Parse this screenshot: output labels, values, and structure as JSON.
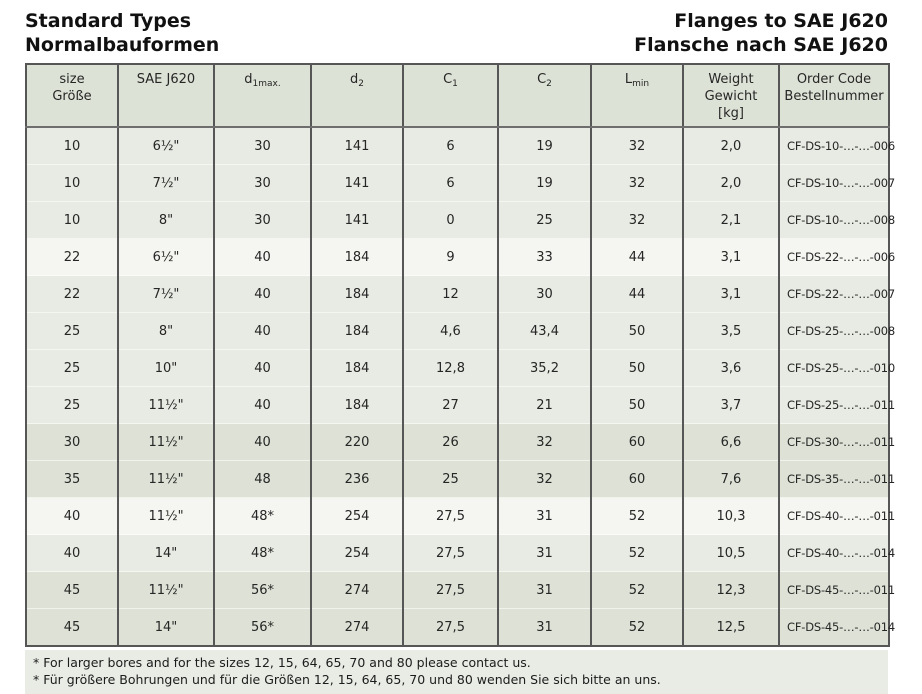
{
  "page_titles": {
    "left": [
      "Standard Types",
      "Normalbauformen"
    ],
    "right": [
      "Flanges to SAE J620",
      "Flansche nach SAE J620"
    ]
  },
  "colors": {
    "header_bg": "#dde2d6",
    "row_light": "#e8ebe3",
    "row_white": "#f5f6f1",
    "row_dark": "#dee2d6",
    "footnote_bg": "#e8ece5",
    "border": "#565656",
    "text": "#262626"
  },
  "table": {
    "headers": [
      {
        "lines": [
          "size",
          "Größe"
        ]
      },
      {
        "lines": [
          "SAE J620"
        ]
      },
      {
        "main": "d",
        "sub": "1max."
      },
      {
        "main": "d",
        "sub": "2"
      },
      {
        "main": "C",
        "sub": "1"
      },
      {
        "main": "C",
        "sub": "2"
      },
      {
        "main": "L",
        "sub": "min"
      },
      {
        "lines": [
          "Weight",
          "Gewicht",
          "[kg]"
        ]
      },
      {
        "lines": [
          "Order Code",
          "Bestellnummer"
        ]
      }
    ],
    "rows": [
      {
        "shade": "a",
        "cells": [
          "10",
          "6½\"",
          "30",
          "141",
          "6",
          "19",
          "32",
          "2,0",
          "CF-DS-10-…-…-006"
        ]
      },
      {
        "shade": "a",
        "cells": [
          "10",
          "7½\"",
          "30",
          "141",
          "6",
          "19",
          "32",
          "2,0",
          "CF-DS-10-…-…-007"
        ]
      },
      {
        "shade": "a",
        "cells": [
          "10",
          "8\"",
          "30",
          "141",
          "0",
          "25",
          "32",
          "2,1",
          "CF-DS-10-…-…-008"
        ]
      },
      {
        "shade": "b",
        "cells": [
          "22",
          "6½\"",
          "40",
          "184",
          "9",
          "33",
          "44",
          "3,1",
          "CF-DS-22-…-…-006"
        ]
      },
      {
        "shade": "a",
        "cells": [
          "22",
          "7½\"",
          "40",
          "184",
          "12",
          "30",
          "44",
          "3,1",
          "CF-DS-22-…-…-007"
        ]
      },
      {
        "shade": "a",
        "cells": [
          "25",
          "8\"",
          "40",
          "184",
          "4,6",
          "43,4",
          "50",
          "3,5",
          "CF-DS-25-…-…-008"
        ]
      },
      {
        "shade": "a",
        "cells": [
          "25",
          "10\"",
          "40",
          "184",
          "12,8",
          "35,2",
          "50",
          "3,6",
          "CF-DS-25-…-…-010"
        ]
      },
      {
        "shade": "a",
        "cells": [
          "25",
          "11½\"",
          "40",
          "184",
          "27",
          "21",
          "50",
          "3,7",
          "CF-DS-25-…-…-011"
        ]
      },
      {
        "shade": "c",
        "cells": [
          "30",
          "11½\"",
          "40",
          "220",
          "26",
          "32",
          "60",
          "6,6",
          "CF-DS-30-…-…-011"
        ]
      },
      {
        "shade": "c",
        "cells": [
          "35",
          "11½\"",
          "48",
          "236",
          "25",
          "32",
          "60",
          "7,6",
          "CF-DS-35-…-…-011"
        ]
      },
      {
        "shade": "b",
        "cells": [
          "40",
          "11½\"",
          "48*",
          "254",
          "27,5",
          "31",
          "52",
          "10,3",
          "CF-DS-40-…-…-011"
        ]
      },
      {
        "shade": "a",
        "cells": [
          "40",
          "14\"",
          "48*",
          "254",
          "27,5",
          "31",
          "52",
          "10,5",
          "CF-DS-40-…-…-014"
        ]
      },
      {
        "shade": "c",
        "cells": [
          "45",
          "11½\"",
          "56*",
          "274",
          "27,5",
          "31",
          "52",
          "12,3",
          "CF-DS-45-…-…-011"
        ]
      },
      {
        "shade": "c",
        "cells": [
          "45",
          "14\"",
          "56*",
          "274",
          "27,5",
          "31",
          "52",
          "12,5",
          "CF-DS-45-…-…-014"
        ]
      }
    ]
  },
  "footnotes": [
    "* For larger bores and for the sizes 12, 15, 64, 65, 70 and 80 please contact us.",
    "* Für größere Bohrungen und für die Größen 12, 15, 64, 65, 70 und 80 wenden Sie sich bitte an uns."
  ]
}
